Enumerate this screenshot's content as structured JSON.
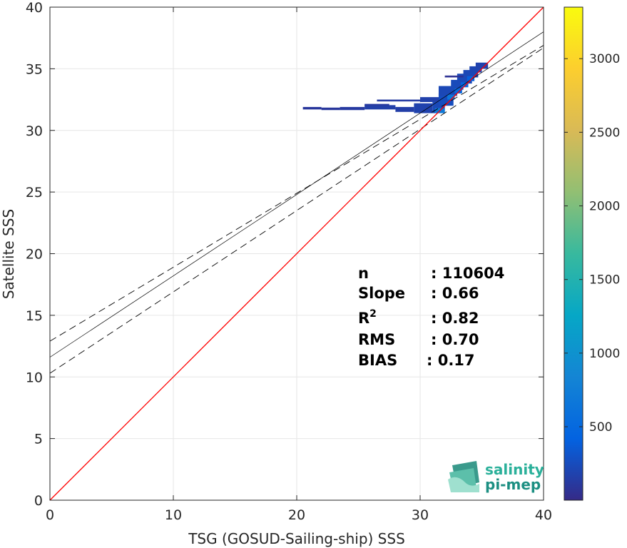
{
  "chart_data": {
    "type": "heatmap",
    "xlabel": "TSG (GOSUD-Sailing-ship) SSS",
    "ylabel": "Satellite SSS",
    "xlim": [
      0,
      40
    ],
    "ylim": [
      0,
      40
    ],
    "x_ticks": [
      "0",
      "10",
      "20",
      "30",
      "40"
    ],
    "y_ticks": [
      "0",
      "5",
      "10",
      "15",
      "20",
      "25",
      "30",
      "35",
      "40"
    ],
    "grid": true,
    "colorbar": {
      "ticks": [
        "500",
        "1000",
        "1500",
        "2000",
        "2500",
        "3000"
      ],
      "tick_values": [
        500,
        1000,
        1500,
        2000,
        2500,
        3000
      ],
      "range": [
        1,
        3350
      ],
      "colormap": "parula"
    },
    "reference_line": {
      "name": "1:1",
      "slope": 1,
      "intercept": 0,
      "color": "#ff0000"
    },
    "fit_line": {
      "slope": 0.66,
      "intercept": 11.6,
      "color": "#000000"
    },
    "fit_bounds": [
      {
        "slope": 0.6,
        "intercept": 12.9
      },
      {
        "slope": 0.66,
        "intercept": 10.3
      }
    ],
    "density_cells": [
      {
        "x": 20.5,
        "y": 31.7,
        "w": 1.5,
        "h": 0.2,
        "count": 100
      },
      {
        "x": 22.0,
        "y": 31.65,
        "w": 1.5,
        "h": 0.2,
        "count": 100
      },
      {
        "x": 23.5,
        "y": 31.65,
        "w": 2.0,
        "h": 0.25,
        "count": 120
      },
      {
        "x": 25.5,
        "y": 31.7,
        "w": 2.5,
        "h": 0.35,
        "count": 160
      },
      {
        "x": 25.5,
        "y": 32.0,
        "w": 2.0,
        "h": 0.15,
        "count": 120
      },
      {
        "x": 26.5,
        "y": 32.35,
        "w": 3.5,
        "h": 0.15,
        "count": 130
      },
      {
        "x": 28.0,
        "y": 31.5,
        "w": 1.5,
        "h": 0.4,
        "count": 150
      },
      {
        "x": 29.5,
        "y": 31.4,
        "w": 1.5,
        "h": 0.8,
        "count": 180
      },
      {
        "x": 31.0,
        "y": 31.4,
        "w": 1.0,
        "h": 1.0,
        "count": 230
      },
      {
        "x": 30.0,
        "y": 32.3,
        "w": 2.5,
        "h": 0.4,
        "count": 170
      },
      {
        "x": 31.5,
        "y": 32.0,
        "w": 1.2,
        "h": 1.0,
        "count": 260
      },
      {
        "x": 31.5,
        "y": 32.8,
        "w": 1.5,
        "h": 0.8,
        "count": 220
      },
      {
        "x": 32.5,
        "y": 33.3,
        "w": 1.0,
        "h": 0.8,
        "count": 240
      },
      {
        "x": 33.0,
        "y": 33.8,
        "w": 1.2,
        "h": 0.8,
        "count": 230
      },
      {
        "x": 33.5,
        "y": 34.3,
        "w": 1.2,
        "h": 0.6,
        "count": 220
      },
      {
        "x": 34.0,
        "y": 34.7,
        "w": 1.0,
        "h": 0.5,
        "count": 200
      },
      {
        "x": 34.5,
        "y": 35.0,
        "w": 1.0,
        "h": 0.5,
        "count": 180
      },
      {
        "x": 32.0,
        "y": 34.3,
        "w": 1.5,
        "h": 0.15,
        "count": 60
      },
      {
        "x": 31.2,
        "y": 31.4,
        "w": 0.8,
        "h": 0.4,
        "count": 700
      },
      {
        "x": 32.2,
        "y": 32.5,
        "w": 0.6,
        "h": 0.4,
        "count": 650
      },
      {
        "x": 32.8,
        "y": 33.0,
        "w": 0.6,
        "h": 0.4,
        "count": 500
      },
      {
        "x": 33.3,
        "y": 33.5,
        "w": 0.6,
        "h": 0.4,
        "count": 450
      },
      {
        "x": 33.8,
        "y": 34.0,
        "w": 0.6,
        "h": 0.4,
        "count": 400
      }
    ],
    "stats": [
      {
        "label": "n",
        "value": ": 110604"
      },
      {
        "label": "Slope",
        "value": ": 0.66"
      },
      {
        "label": "R",
        "sup": "2",
        "value": ": 0.82"
      },
      {
        "label": "RMS",
        "value": ": 0.70"
      },
      {
        "label": "BIAS",
        "value": ": 0.17"
      }
    ]
  },
  "logo": {
    "line1": "salinity",
    "line2": "pi-mep",
    "color1": "#2ab09a",
    "color2": "#1c8f82"
  }
}
